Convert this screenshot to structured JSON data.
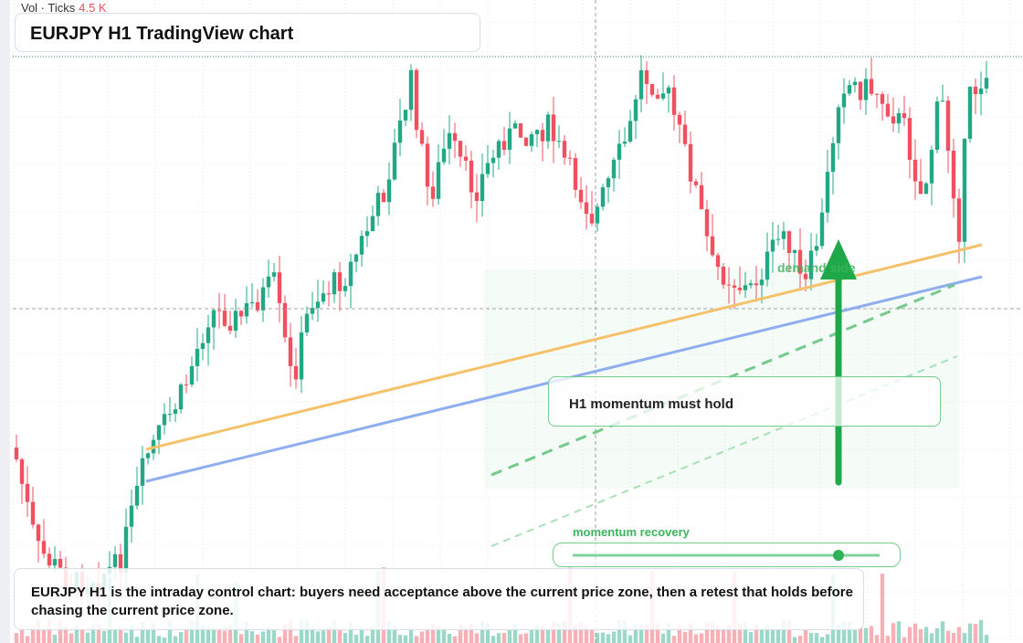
{
  "legend": {
    "label": "Vol · Ticks",
    "value": "4.5 K"
  },
  "header": {
    "title": "EURJPY H1 TradingView chart"
  },
  "annotations": {
    "zone": "demand side",
    "callout": "H1 momentum must hold"
  },
  "slider": {
    "label": "momentum recovery"
  },
  "caption": {
    "text": "EURJPY H1 is the intraday control chart: buyers need acceptance above the current price zone, then a retest that holds before chasing the current price zone."
  }
}
